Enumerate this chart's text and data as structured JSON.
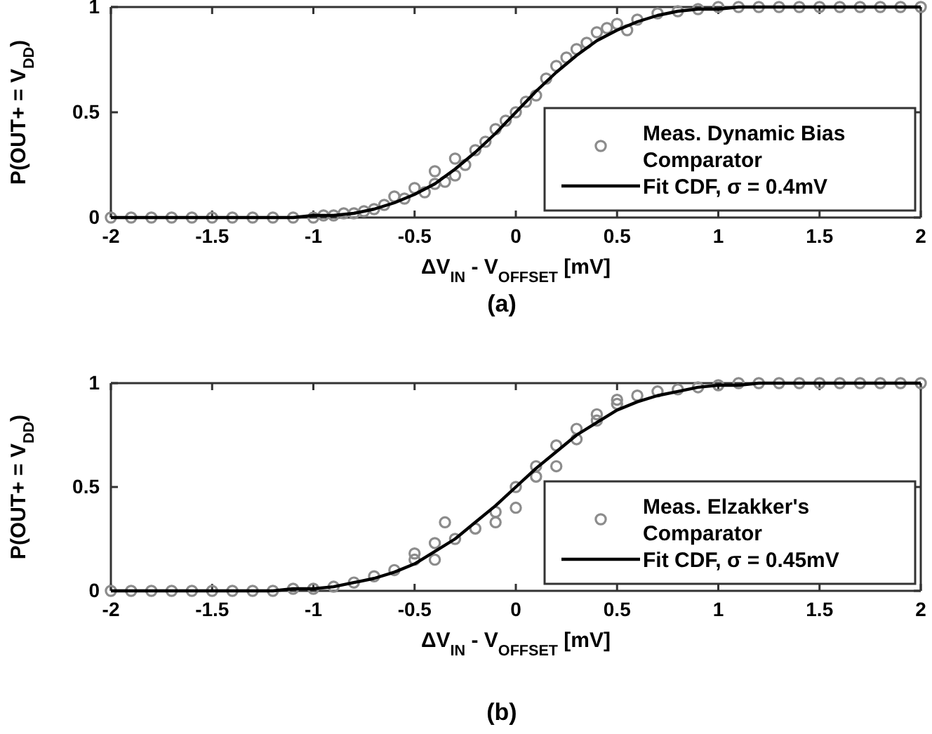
{
  "chart_data": [
    {
      "type": "scatter",
      "xlabel": "ΔV$_{IN}$ - V$_{OFFSET}$ [mV]",
      "ylabel": "P(OUT+ = V$_{DD}$)",
      "xlim": [
        -2,
        2
      ],
      "ylim": [
        0,
        1
      ],
      "xticks": [
        -2,
        -1.5,
        -1,
        -0.5,
        0,
        0.5,
        1,
        1.5,
        2
      ],
      "yticks": [
        0,
        0.5,
        1
      ],
      "legend": "bottom right",
      "grid": false,
      "annotations": [
        "(a)"
      ],
      "series": [
        {
          "type": "scatter",
          "name": "Meas. Dynamic Bias Comparator",
          "color": "#8c8c8c",
          "marker": "circle",
          "x": [
            -2,
            -1.9,
            -1.8,
            -1.7,
            -1.6,
            -1.5,
            -1.4,
            -1.3,
            -1.2,
            -1.1,
            -1,
            -0.95,
            -0.9,
            -0.85,
            -0.8,
            -0.75,
            -0.7,
            -0.65,
            -0.6,
            -0.55,
            -0.5,
            -0.45,
            -0.4,
            -0.4,
            -0.35,
            -0.3,
            -0.3,
            -0.25,
            -0.2,
            -0.15,
            -0.1,
            -0.05,
            0,
            0.05,
            0.1,
            0.15,
            0.2,
            0.25,
            0.3,
            0.35,
            0.4,
            0.45,
            0.5,
            0.55,
            0.6,
            0.7,
            0.8,
            0.9,
            1,
            1.1,
            1.2,
            1.3,
            1.4,
            1.5,
            1.6,
            1.7,
            1.8,
            1.9,
            2
          ],
          "values": [
            0,
            0,
            0,
            0,
            0,
            0,
            0,
            0,
            0,
            0,
            0,
            0.01,
            0.01,
            0.02,
            0.02,
            0.03,
            0.04,
            0.06,
            0.1,
            0.09,
            0.14,
            0.12,
            0.22,
            0.16,
            0.17,
            0.28,
            0.2,
            0.25,
            0.32,
            0.36,
            0.42,
            0.46,
            0.5,
            0.55,
            0.58,
            0.66,
            0.72,
            0.76,
            0.8,
            0.83,
            0.88,
            0.9,
            0.92,
            0.89,
            0.94,
            0.97,
            0.98,
            0.99,
            1,
            1,
            1,
            1,
            1,
            1,
            1,
            1,
            1,
            1,
            1
          ]
        },
        {
          "type": "line",
          "name": "Fit CDF, σ = 0.4mV",
          "color": "#000000",
          "marker": "none",
          "line_style": "solid",
          "x": [
            -2,
            -1.9,
            -1.8,
            -1.7,
            -1.6,
            -1.5,
            -1.4,
            -1.3,
            -1.2,
            -1.1,
            -1,
            -0.9,
            -0.8,
            -0.7,
            -0.6,
            -0.5,
            -0.4,
            -0.3,
            -0.2,
            -0.1,
            0,
            0.1,
            0.2,
            0.3,
            0.4,
            0.5,
            0.6,
            0.7,
            0.8,
            0.9,
            1,
            1.1,
            1.2,
            1.3,
            1.4,
            1.5,
            1.6,
            1.7,
            1.8,
            1.9,
            2
          ],
          "values": [
            0,
            0,
            0,
            0,
            0,
            0,
            0,
            0,
            0,
            0,
            0.01,
            0.01,
            0.02,
            0.04,
            0.07,
            0.11,
            0.16,
            0.23,
            0.31,
            0.4,
            0.5,
            0.6,
            0.69,
            0.77,
            0.84,
            0.89,
            0.93,
            0.96,
            0.98,
            0.99,
            0.99,
            1,
            1,
            1,
            1,
            1,
            1,
            1,
            1,
            1,
            1
          ]
        }
      ]
    },
    {
      "type": "scatter",
      "xlabel": "ΔV$_{IN}$ - V$_{OFFSET}$ [mV]",
      "ylabel": "P(OUT+ = V$_{DD}$)",
      "xlim": [
        -2,
        2
      ],
      "ylim": [
        0,
        1
      ],
      "xticks": [
        -2,
        -1.5,
        -1,
        -0.5,
        0,
        0.5,
        1,
        1.5,
        2
      ],
      "yticks": [
        0,
        0.5,
        1
      ],
      "legend": "bottom right",
      "grid": false,
      "annotations": [
        "(b)"
      ],
      "series": [
        {
          "type": "scatter",
          "name": "Meas. Elzakker's Comparator",
          "color": "#8c8c8c",
          "marker": "circle",
          "x": [
            -2,
            -1.9,
            -1.8,
            -1.7,
            -1.6,
            -1.5,
            -1.4,
            -1.3,
            -1.2,
            -1.1,
            -1,
            -0.9,
            -0.8,
            -0.7,
            -0.6,
            -0.5,
            -0.5,
            -0.4,
            -0.4,
            -0.35,
            -0.3,
            -0.2,
            -0.1,
            -0.1,
            0,
            0,
            0.1,
            0.1,
            0.2,
            0.2,
            0.3,
            0.3,
            0.4,
            0.4,
            0.5,
            0.5,
            0.6,
            0.7,
            0.8,
            0.9,
            1,
            1.1,
            1.2,
            1.3,
            1.4,
            1.5,
            1.6,
            1.7,
            1.8,
            1.9,
            2
          ],
          "values": [
            0,
            0,
            0,
            0,
            0,
            0,
            0,
            0,
            0,
            0.01,
            0.01,
            0.02,
            0.04,
            0.07,
            0.1,
            0.15,
            0.18,
            0.15,
            0.23,
            0.33,
            0.25,
            0.3,
            0.38,
            0.33,
            0.5,
            0.4,
            0.55,
            0.6,
            0.6,
            0.7,
            0.78,
            0.73,
            0.82,
            0.85,
            0.9,
            0.92,
            0.94,
            0.96,
            0.97,
            0.98,
            0.99,
            1,
            1,
            1,
            1,
            1,
            1,
            1,
            1,
            1,
            1
          ]
        },
        {
          "type": "line",
          "name": "Fit CDF, σ = 0.45mV",
          "color": "#000000",
          "marker": "none",
          "line_style": "solid",
          "x": [
            -2,
            -1.9,
            -1.8,
            -1.7,
            -1.6,
            -1.5,
            -1.4,
            -1.3,
            -1.2,
            -1.1,
            -1,
            -0.9,
            -0.8,
            -0.7,
            -0.6,
            -0.5,
            -0.4,
            -0.3,
            -0.2,
            -0.1,
            0,
            0.1,
            0.2,
            0.3,
            0.4,
            0.5,
            0.6,
            0.7,
            0.8,
            0.9,
            1,
            1.1,
            1.2,
            1.3,
            1.4,
            1.5,
            1.6,
            1.7,
            1.8,
            1.9,
            2
          ],
          "values": [
            0,
            0,
            0,
            0,
            0,
            0,
            0,
            0,
            0,
            0.01,
            0.01,
            0.02,
            0.04,
            0.06,
            0.09,
            0.13,
            0.19,
            0.25,
            0.33,
            0.41,
            0.5,
            0.59,
            0.67,
            0.75,
            0.81,
            0.87,
            0.91,
            0.94,
            0.96,
            0.98,
            0.99,
            0.99,
            1,
            1,
            1,
            1,
            1,
            1,
            1,
            1,
            1
          ]
        }
      ]
    }
  ]
}
